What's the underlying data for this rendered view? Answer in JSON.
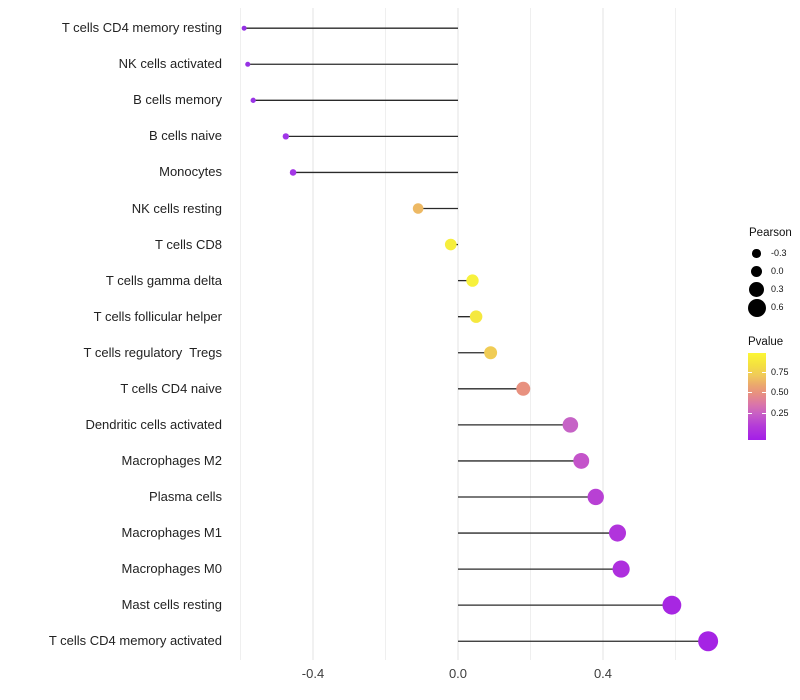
{
  "figure": {
    "background": "#ffffff"
  },
  "chart_data": {
    "type": "lollipop",
    "orientation": "horizontal",
    "title": "",
    "xlabel": "",
    "ylabel": "",
    "xlim": [
      -0.66,
      0.76
    ],
    "grid": true,
    "x_axis": {
      "tick_values": [
        -0.4,
        0.0,
        0.4
      ],
      "tick_labels": [
        "-0.4",
        "0.0",
        "0.4"
      ],
      "gridline_values": [
        -0.6,
        -0.4,
        -0.2,
        0.0,
        0.2,
        0.4,
        0.6
      ]
    },
    "stem_color": "#2a2a2a",
    "points": [
      {
        "label": "T cells CD4 memory resting",
        "pearson": -0.59,
        "dot_color": "#9430E3"
      },
      {
        "label": "NK cells activated",
        "pearson": -0.58,
        "dot_color": "#9632E4"
      },
      {
        "label": "B cells memory",
        "pearson": -0.565,
        "dot_color": "#9A34E6"
      },
      {
        "label": "B cells naive",
        "pearson": -0.475,
        "dot_color": "#A036E8"
      },
      {
        "label": "Monocytes",
        "pearson": -0.455,
        "dot_color": "#A437E6"
      },
      {
        "label": "NK cells resting",
        "pearson": -0.11,
        "dot_color": "#EDB964"
      },
      {
        "label": "T cells CD8",
        "pearson": -0.02,
        "dot_color": "#F6EE3D"
      },
      {
        "label": "T cells gamma delta",
        "pearson": 0.04,
        "dot_color": "#F7F13C"
      },
      {
        "label": "T cells follicular helper",
        "pearson": 0.05,
        "dot_color": "#F5E83E"
      },
      {
        "label": "T cells regulatory  Tregs",
        "pearson": 0.09,
        "dot_color": "#F0CC55"
      },
      {
        "label": "T cells CD4 naive",
        "pearson": 0.18,
        "dot_color": "#E8917F"
      },
      {
        "label": "Dendritic cells activated",
        "pearson": 0.31,
        "dot_color": "#C663C6"
      },
      {
        "label": "Macrophages M2",
        "pearson": 0.34,
        "dot_color": "#C454CA"
      },
      {
        "label": "Plasma cells",
        "pearson": 0.38,
        "dot_color": "#B840D4"
      },
      {
        "label": "Macrophages M1",
        "pearson": 0.44,
        "dot_color": "#B134DC"
      },
      {
        "label": "Macrophages M0",
        "pearson": 0.45,
        "dot_color": "#AE2FDE"
      },
      {
        "label": "Mast cells resting",
        "pearson": 0.59,
        "dot_color": "#A727E2"
      },
      {
        "label": "T cells CD4 memory activated",
        "pearson": 0.69,
        "dot_color": "#A524E4"
      }
    ],
    "legend": {
      "size": {
        "title": "Pearson",
        "dot_color": "#000000",
        "items": [
          {
            "label": "-0.3",
            "value": -0.3
          },
          {
            "label": "0.0",
            "value": 0.0
          },
          {
            "label": "0.3",
            "value": 0.3
          },
          {
            "label": "0.6",
            "value": 0.6
          }
        ]
      },
      "color": {
        "title": "Pvalue",
        "ticks": [
          {
            "label": "0.75",
            "value": 0.75
          },
          {
            "label": "0.50",
            "value": 0.5
          },
          {
            "label": "0.25",
            "value": 0.25
          }
        ],
        "gradient_top_to_bottom": [
          {
            "color": "#FCF735",
            "pos": 0
          },
          {
            "color": "#F4E040",
            "pos": 14
          },
          {
            "color": "#F0C95A",
            "pos": 26
          },
          {
            "color": "#EBA76E",
            "pos": 37
          },
          {
            "color": "#E8917F",
            "pos": 46
          },
          {
            "color": "#D973AC",
            "pos": 60
          },
          {
            "color": "#C75FC5",
            "pos": 70
          },
          {
            "color": "#B43BD8",
            "pos": 84
          },
          {
            "color": "#A31EE8",
            "pos": 100
          }
        ]
      }
    }
  }
}
